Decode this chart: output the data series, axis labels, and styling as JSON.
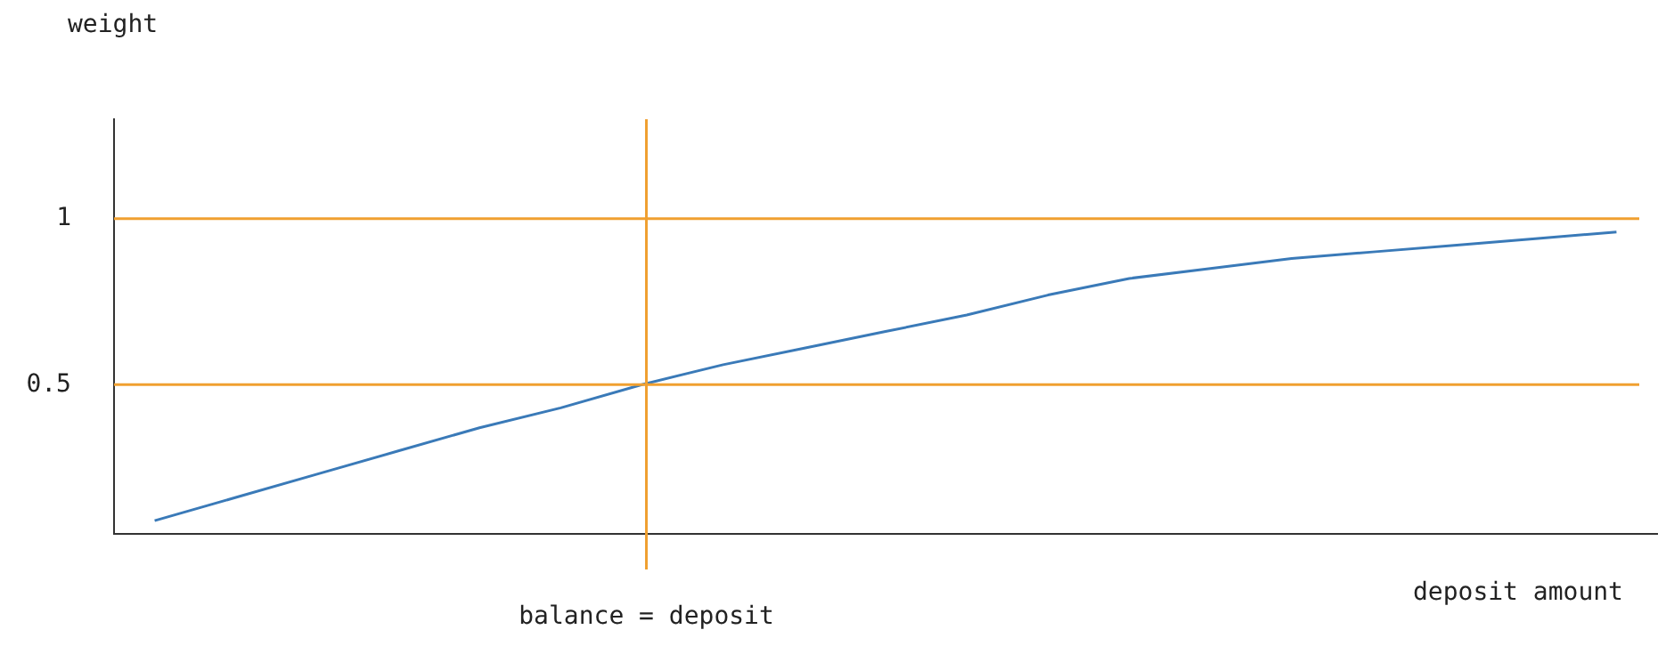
{
  "chart_data": {
    "type": "line",
    "xlabel": "deposit amount",
    "ylabel": "weight",
    "categories": [
      null,
      null,
      null,
      null,
      null,
      null,
      null,
      null,
      null,
      null,
      null,
      null,
      null,
      null,
      null,
      null,
      null,
      null,
      null
    ],
    "series": [
      {
        "color": "#3a7ab8",
        "values": [
          0.09,
          0.16,
          0.23,
          0.3,
          0.37,
          0.43,
          0.5,
          0.56,
          0.61,
          0.66,
          0.71,
          0.77,
          0.82,
          0.85,
          0.88,
          0.9,
          0.92,
          0.94,
          0.96
        ]
      }
    ],
    "ylim": [
      0.05,
      1.3
    ],
    "yticks": [
      0.5,
      1
    ],
    "ref_lines": [
      {
        "axis": "y",
        "value": 1,
        "color": "#f0a030"
      },
      {
        "axis": "y",
        "value": 0.5,
        "color": "#f0a030"
      }
    ],
    "annotations": [
      "balance = deposit"
    ],
    "grid": false,
    "legend": false,
    "marker": "none",
    "line_style": "solid"
  }
}
